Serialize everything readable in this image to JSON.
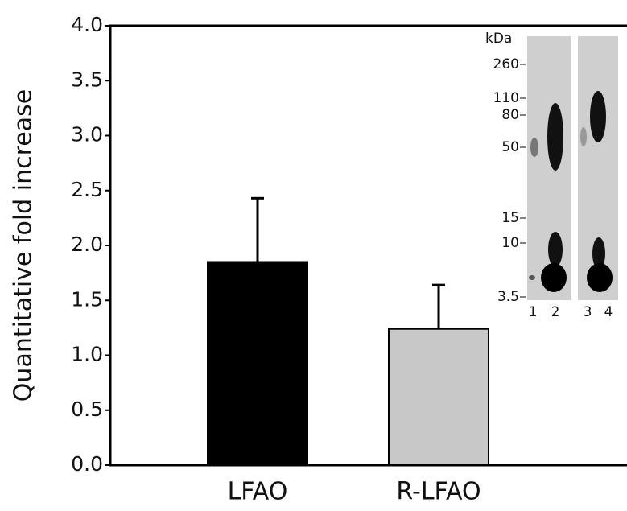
{
  "chart_data": {
    "type": "bar",
    "ylabel": "Quantitative fold increase",
    "categories": [
      "LFAO",
      "R-LFAO"
    ],
    "values": [
      1.85,
      1.24
    ],
    "errors": [
      0.58,
      0.4
    ],
    "colors": [
      "#000000",
      "#c8c8c8"
    ],
    "ylim": [
      0,
      4
    ],
    "yticks": [
      {
        "value": 0,
        "label": "0.0"
      },
      0.5,
      {
        "value": 1,
        "label": "1.0"
      },
      1.5,
      {
        "value": 2,
        "label": "2.0"
      },
      2.5,
      {
        "value": 3,
        "label": "3.0"
      },
      3.5,
      {
        "value": 4,
        "label": "4.0"
      }
    ],
    "inset": {
      "unit": "kDa",
      "markers": [
        260,
        110,
        80,
        50,
        15,
        10,
        3.5
      ],
      "lanes": [
        1,
        2,
        3,
        4
      ]
    }
  }
}
